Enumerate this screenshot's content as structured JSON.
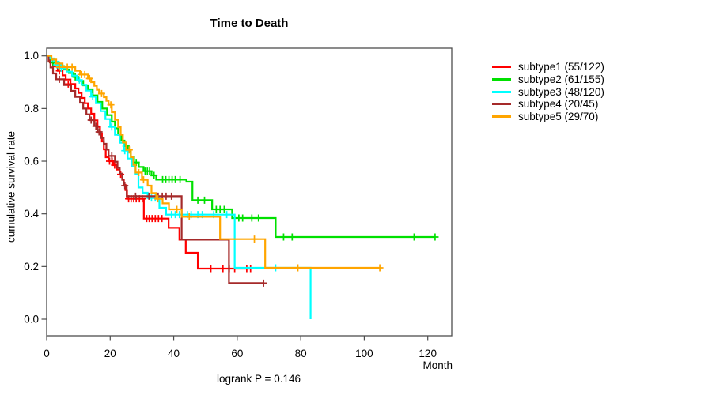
{
  "chart_data": {
    "type": "line",
    "subtype": "kaplan-meier-step-curves",
    "title": "Time to Death",
    "xlabel": "Month",
    "ylabel": "cumulative survival rate",
    "annotation": "logrank P = 0.146",
    "xlim": [
      0,
      127.6
    ],
    "ylim": [
      0.0,
      1.0
    ],
    "xticks": [
      0,
      20,
      40,
      60,
      80,
      100,
      120
    ],
    "yticks": [
      "0.0",
      "0.2",
      "0.4",
      "0.6",
      "0.8",
      "1.0"
    ],
    "grid": false,
    "legend_position": "right-outside",
    "series": [
      {
        "name": "subtype1",
        "label": "subtype1 (55/122)",
        "color": "#ff0000",
        "steps": [
          [
            0,
            1.0
          ],
          [
            1,
            0.975
          ],
          [
            2,
            0.96
          ],
          [
            3.5,
            0.943
          ],
          [
            5,
            0.926
          ],
          [
            6,
            0.91
          ],
          [
            7.5,
            0.893
          ],
          [
            9,
            0.876
          ],
          [
            10,
            0.859
          ],
          [
            11,
            0.84
          ],
          [
            12,
            0.82
          ],
          [
            13,
            0.8
          ],
          [
            14,
            0.78
          ],
          [
            15,
            0.755
          ],
          [
            16,
            0.73
          ],
          [
            16.8,
            0.705
          ],
          [
            17.4,
            0.675
          ],
          [
            18,
            0.645
          ],
          [
            18.6,
            0.615
          ],
          [
            19.5,
            0.6
          ],
          [
            21,
            0.585
          ],
          [
            22,
            0.568
          ],
          [
            23,
            0.55
          ],
          [
            23.8,
            0.53
          ],
          [
            24.3,
            0.51
          ],
          [
            24.8,
            0.49
          ],
          [
            25.3,
            0.457
          ],
          [
            30.6,
            0.382
          ],
          [
            38.4,
            0.347
          ],
          [
            41.8,
            0.302
          ],
          [
            43.8,
            0.252
          ],
          [
            47.6,
            0.192
          ]
        ],
        "end": 64.2,
        "censors": [
          [
            4,
            0.943
          ],
          [
            6.8,
            0.893
          ],
          [
            19.8,
            0.6
          ],
          [
            20.6,
            0.6
          ],
          [
            21.4,
            0.585
          ],
          [
            23.3,
            0.55
          ],
          [
            25.8,
            0.457
          ],
          [
            26.6,
            0.457
          ],
          [
            27.4,
            0.457
          ],
          [
            28.2,
            0.457
          ],
          [
            29.2,
            0.457
          ],
          [
            30.1,
            0.457
          ],
          [
            31.5,
            0.382
          ],
          [
            32.3,
            0.382
          ],
          [
            33.2,
            0.382
          ],
          [
            34.2,
            0.382
          ],
          [
            35.2,
            0.382
          ],
          [
            36.3,
            0.382
          ],
          [
            51.7,
            0.192
          ],
          [
            55.5,
            0.192
          ],
          [
            57.5,
            0.192
          ],
          [
            59.2,
            0.192
          ],
          [
            63,
            0.192
          ],
          [
            64.2,
            0.192
          ]
        ]
      },
      {
        "name": "subtype2",
        "label": "subtype2 (61/155)",
        "color": "#00e000",
        "steps": [
          [
            0,
            1.0
          ],
          [
            1.2,
            0.987
          ],
          [
            2.5,
            0.974
          ],
          [
            4,
            0.961
          ],
          [
            5.5,
            0.948
          ],
          [
            7,
            0.935
          ],
          [
            8.5,
            0.92
          ],
          [
            10,
            0.905
          ],
          [
            11.5,
            0.888
          ],
          [
            13,
            0.87
          ],
          [
            14.5,
            0.85
          ],
          [
            16,
            0.825
          ],
          [
            17.5,
            0.8
          ],
          [
            19,
            0.775
          ],
          [
            20.5,
            0.75
          ],
          [
            21.5,
            0.725
          ],
          [
            22.5,
            0.7
          ],
          [
            23.5,
            0.678
          ],
          [
            24.5,
            0.657
          ],
          [
            25.5,
            0.636
          ],
          [
            26.5,
            0.615
          ],
          [
            27.5,
            0.595
          ],
          [
            29,
            0.578
          ],
          [
            30.5,
            0.562
          ],
          [
            33,
            0.546
          ],
          [
            34.5,
            0.53
          ],
          [
            44,
            0.522
          ],
          [
            45.9,
            0.452
          ],
          [
            52.1,
            0.417
          ],
          [
            58.4,
            0.384
          ],
          [
            72.1,
            0.312
          ]
        ],
        "end": 122.3,
        "censors": [
          [
            2,
            0.974
          ],
          [
            9,
            0.92
          ],
          [
            25,
            0.657
          ],
          [
            28.2,
            0.595
          ],
          [
            31,
            0.562
          ],
          [
            31.7,
            0.562
          ],
          [
            32.4,
            0.562
          ],
          [
            33.8,
            0.546
          ],
          [
            36.5,
            0.53
          ],
          [
            37.5,
            0.53
          ],
          [
            38.5,
            0.53
          ],
          [
            39.5,
            0.53
          ],
          [
            40.5,
            0.53
          ],
          [
            42,
            0.53
          ],
          [
            47.6,
            0.452
          ],
          [
            49.7,
            0.452
          ],
          [
            53.4,
            0.417
          ],
          [
            54.6,
            0.417
          ],
          [
            55.9,
            0.417
          ],
          [
            60.5,
            0.384
          ],
          [
            61.7,
            0.384
          ],
          [
            64.6,
            0.384
          ],
          [
            66.7,
            0.384
          ],
          [
            74.6,
            0.312
          ],
          [
            77.3,
            0.312
          ],
          [
            115.7,
            0.312
          ],
          [
            122.3,
            0.312
          ]
        ]
      },
      {
        "name": "subtype3",
        "label": "subtype3 (48/120)",
        "color": "#00ffff",
        "steps": [
          [
            0,
            1.0
          ],
          [
            1,
            0.99
          ],
          [
            2.2,
            0.978
          ],
          [
            3.8,
            0.966
          ],
          [
            5,
            0.953
          ],
          [
            6.5,
            0.94
          ],
          [
            8,
            0.925
          ],
          [
            9.5,
            0.908
          ],
          [
            11,
            0.89
          ],
          [
            12.5,
            0.868
          ],
          [
            14,
            0.845
          ],
          [
            15.5,
            0.82
          ],
          [
            17,
            0.79
          ],
          [
            18.5,
            0.76
          ],
          [
            20,
            0.73
          ],
          [
            21.5,
            0.7
          ],
          [
            23,
            0.67
          ],
          [
            24.3,
            0.64
          ],
          [
            25.5,
            0.61
          ],
          [
            26.8,
            0.58
          ],
          [
            28,
            0.55
          ],
          [
            28.9,
            0.5
          ],
          [
            30.2,
            0.48
          ],
          [
            31.8,
            0.46
          ],
          [
            35.5,
            0.423
          ],
          [
            37.6,
            0.397
          ],
          [
            59.2,
            0.195
          ],
          [
            83.1,
            0.0
          ]
        ],
        "end": 83.1,
        "censors": [
          [
            1.5,
            0.99
          ],
          [
            3.2,
            0.966
          ],
          [
            4.6,
            0.953
          ],
          [
            10.3,
            0.908
          ],
          [
            14.5,
            0.845
          ],
          [
            20.5,
            0.73
          ],
          [
            24.6,
            0.64
          ],
          [
            33,
            0.46
          ],
          [
            34.2,
            0.46
          ],
          [
            39.3,
            0.397
          ],
          [
            40.5,
            0.397
          ],
          [
            41.8,
            0.397
          ],
          [
            44.3,
            0.397
          ],
          [
            45.5,
            0.397
          ],
          [
            47.6,
            0.397
          ],
          [
            49,
            0.397
          ],
          [
            52.6,
            0.397
          ],
          [
            56.7,
            0.397
          ],
          [
            72.1,
            0.195
          ]
        ]
      },
      {
        "name": "subtype4",
        "label": "subtype4 (20/45)",
        "color": "#a52a2a",
        "steps": [
          [
            0,
            1.0
          ],
          [
            0.6,
            0.978
          ],
          [
            1.2,
            0.956
          ],
          [
            2,
            0.933
          ],
          [
            3,
            0.911
          ],
          [
            5.5,
            0.889
          ],
          [
            7.7,
            0.867
          ],
          [
            9,
            0.844
          ],
          [
            10.5,
            0.822
          ],
          [
            11.5,
            0.8
          ],
          [
            12.5,
            0.778
          ],
          [
            13.5,
            0.756
          ],
          [
            15,
            0.733
          ],
          [
            16,
            0.711
          ],
          [
            17,
            0.688
          ],
          [
            18,
            0.666
          ],
          [
            18.8,
            0.644
          ],
          [
            19.5,
            0.62
          ],
          [
            21.5,
            0.598
          ],
          [
            22.3,
            0.575
          ],
          [
            23,
            0.553
          ],
          [
            23.8,
            0.529
          ],
          [
            24.2,
            0.507
          ],
          [
            25.2,
            0.467
          ],
          [
            42.5,
            0.302
          ],
          [
            57.4,
            0.137
          ]
        ],
        "end": 68.3,
        "censors": [
          [
            4,
            0.911
          ],
          [
            14,
            0.756
          ],
          [
            15.5,
            0.733
          ],
          [
            16.5,
            0.711
          ],
          [
            20.5,
            0.62
          ],
          [
            24.6,
            0.507
          ],
          [
            28,
            0.467
          ],
          [
            32.2,
            0.467
          ],
          [
            35.1,
            0.467
          ],
          [
            36.4,
            0.467
          ],
          [
            37.6,
            0.467
          ],
          [
            39.3,
            0.467
          ],
          [
            68.3,
            0.137
          ]
        ]
      },
      {
        "name": "subtype5",
        "label": "subtype5 (29/70)",
        "color": "#ffa500",
        "steps": [
          [
            0,
            1.0
          ],
          [
            1.5,
            0.986
          ],
          [
            3,
            0.971
          ],
          [
            5,
            0.957
          ],
          [
            9,
            0.943
          ],
          [
            10.5,
            0.929
          ],
          [
            13,
            0.914
          ],
          [
            14,
            0.9
          ],
          [
            15,
            0.886
          ],
          [
            15.8,
            0.871
          ],
          [
            16.5,
            0.857
          ],
          [
            18,
            0.843
          ],
          [
            18.8,
            0.829
          ],
          [
            19.5,
            0.814
          ],
          [
            20.5,
            0.786
          ],
          [
            21.5,
            0.757
          ],
          [
            22.5,
            0.729
          ],
          [
            23.3,
            0.7
          ],
          [
            24,
            0.671
          ],
          [
            25,
            0.643
          ],
          [
            26.5,
            0.615
          ],
          [
            27.3,
            0.586
          ],
          [
            28,
            0.557
          ],
          [
            30,
            0.529
          ],
          [
            31.8,
            0.507
          ],
          [
            33,
            0.479
          ],
          [
            34.5,
            0.457
          ],
          [
            36.5,
            0.44
          ],
          [
            38.5,
            0.417
          ],
          [
            42.5,
            0.389
          ],
          [
            54.6,
            0.304
          ],
          [
            68.8,
            0.195
          ]
        ],
        "end": 104.9,
        "censors": [
          [
            4,
            0.957
          ],
          [
            6.5,
            0.957
          ],
          [
            8,
            0.957
          ],
          [
            11,
            0.929
          ],
          [
            12,
            0.929
          ],
          [
            13.5,
            0.914
          ],
          [
            17.3,
            0.857
          ],
          [
            20.2,
            0.814
          ],
          [
            26,
            0.643
          ],
          [
            29,
            0.557
          ],
          [
            30.5,
            0.529
          ],
          [
            35,
            0.457
          ],
          [
            41,
            0.417
          ],
          [
            44.9,
            0.389
          ],
          [
            65.4,
            0.304
          ],
          [
            79.1,
            0.195
          ],
          [
            104.9,
            0.195
          ]
        ]
      }
    ],
    "style": {
      "frame_color": "#4d4d4d",
      "text_color": "#000000",
      "background": "#ffffff"
    }
  }
}
